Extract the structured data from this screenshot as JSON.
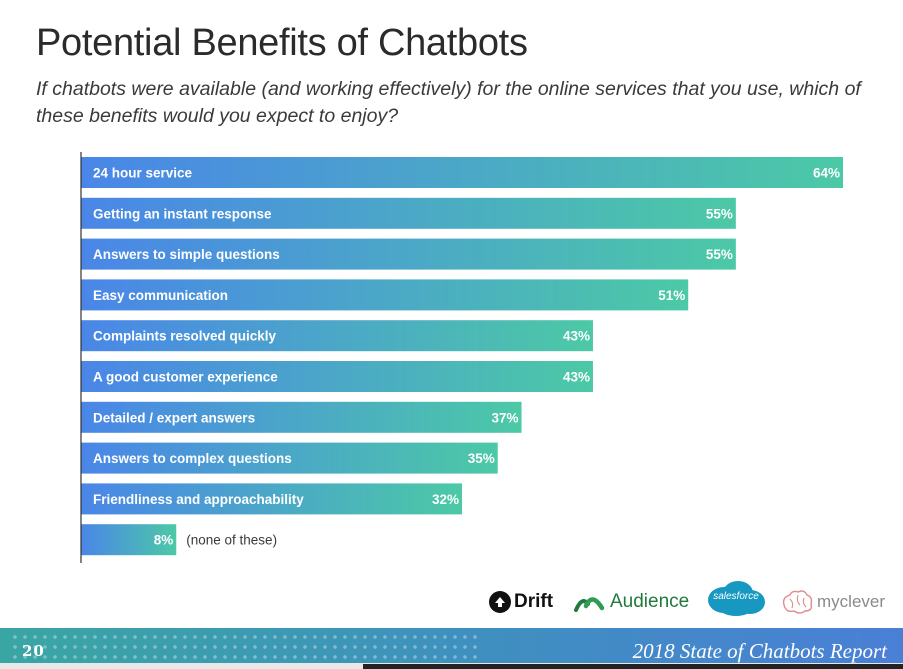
{
  "page": {
    "title": "Potential Benefits of Chatbots",
    "subtitle": "If chatbots were available (and working effectively) for the online services that you use, which of these benefits would you expect to enjoy?"
  },
  "chart_data": {
    "type": "bar",
    "orientation": "horizontal",
    "title": "Potential Benefits of Chatbots",
    "categories": [
      "24 hour service",
      "Getting an instant response",
      "Answers to simple questions",
      "Easy communication",
      "Complaints resolved quickly",
      "A good customer experience",
      "Detailed / expert answers",
      "Answers to complex questions",
      "Friendliness and approachability",
      "(none of these)"
    ],
    "values": [
      64,
      55,
      55,
      51,
      43,
      43,
      37,
      35,
      32,
      8
    ],
    "value_labels": [
      "64%",
      "55%",
      "55%",
      "51%",
      "43%",
      "43%",
      "37%",
      "35%",
      "32%",
      "8%"
    ],
    "unit": "%",
    "xlim": [
      0,
      64
    ],
    "grid": false,
    "legend": "none",
    "colors": {
      "bar_start": "#4a86e8",
      "bar_end": "#4cc9a6",
      "axis": "#333333"
    }
  },
  "logos": {
    "drift": "Drift",
    "audience": "Audience",
    "salesforce": "salesforce",
    "myclever": "myclever"
  },
  "footer": {
    "page_number": "20",
    "report_title": "2018 State of Chatbots Report"
  }
}
